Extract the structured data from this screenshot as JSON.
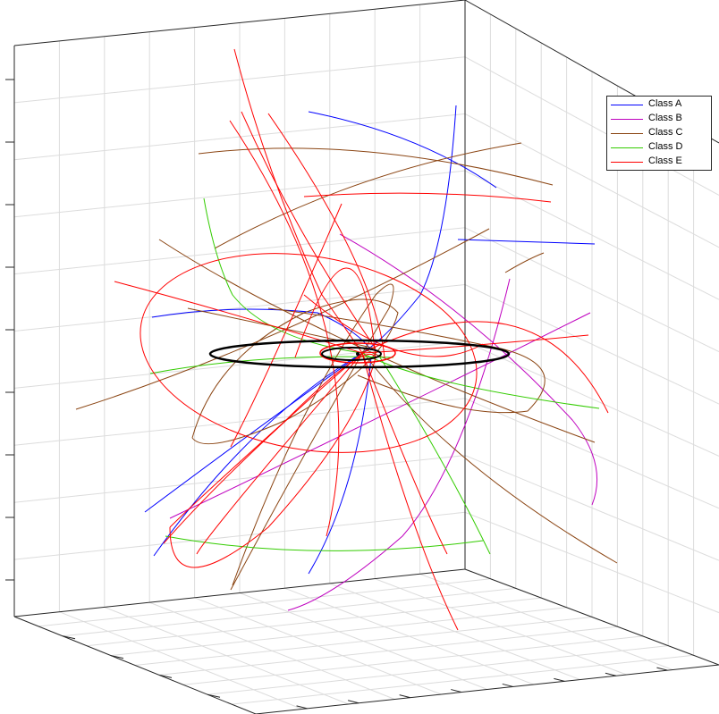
{
  "chart_data": {
    "type": "line",
    "view": "3d",
    "grid": true,
    "legend_position": "top-right",
    "tick_labels_shown": false,
    "series": [
      {
        "name": "Class A",
        "color": "#0000ff"
      },
      {
        "name": "Class B",
        "color": "#bf00bf"
      },
      {
        "name": "Class C",
        "color": "#8b4513"
      },
      {
        "name": "Class D",
        "color": "#33cc00"
      },
      {
        "name": "Class E",
        "color": "#ff0000"
      }
    ],
    "reference_rings_color": "#000000"
  }
}
